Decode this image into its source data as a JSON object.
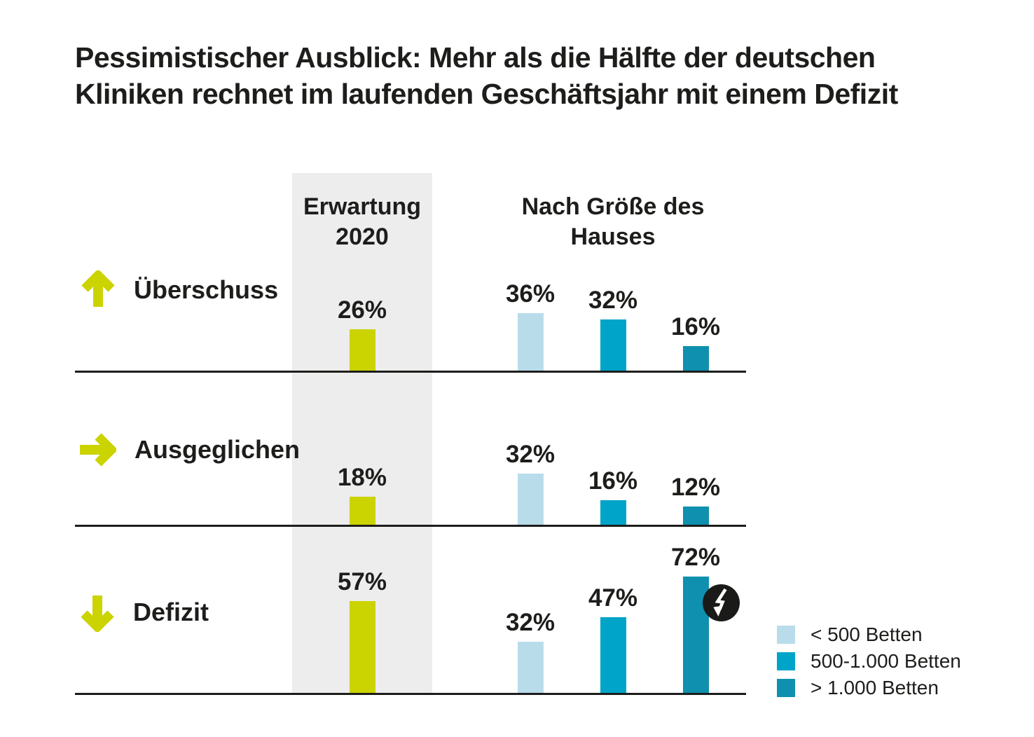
{
  "header": {
    "title_line1": "Pessimistischer Ausblick: Mehr als die Hälfte der deutschen",
    "title_line2": "Kliniken rechnet im laufenden Geschäftsjahr mit einem Defizit"
  },
  "columns": {
    "erwartung": {
      "line1": "Erwartung",
      "line2": "2020"
    },
    "groesse": {
      "line1": "Nach Größe des",
      "line2": "Hauses"
    }
  },
  "legend": {
    "items": [
      {
        "label": "< 500 Betten",
        "color": "#b9dcea"
      },
      {
        "label": "500-1.000 Betten",
        "color": "#00a4c8"
      },
      {
        "label": "> 1.000 Betten",
        "color": "#0e90ae"
      }
    ]
  },
  "colors": {
    "accent_lime": "#cbd300",
    "light_blue": "#b9dcea",
    "cyan": "#00a4c8",
    "teal": "#0e90ae",
    "band_gray": "#ededee",
    "ink": "#1d1d1b",
    "badge_black": "#1a1a18"
  },
  "chart_data": {
    "type": "bar",
    "title": "Pessimistischer Ausblick: Mehr als die Hälfte der deutschen Kliniken rechnet im laufenden Geschäftsjahr mit einem Defizit",
    "unit": "%",
    "ylim": [
      0,
      100
    ],
    "grid": false,
    "legend_position": "bottom-right",
    "column_groups": [
      "Erwartung 2020",
      "Nach Größe des Hauses"
    ],
    "series": [
      "Erwartung 2020",
      "< 500 Betten",
      "500-1.000 Betten",
      "> 1.000 Betten"
    ],
    "series_colors": [
      "#cbd300",
      "#b9dcea",
      "#00a4c8",
      "#0e90ae"
    ],
    "rows": [
      {
        "category": "Überschuss",
        "icon": "arrow-up",
        "bars": [
          {
            "series": "Erwartung 2020",
            "value": 26,
            "label": "26%"
          },
          {
            "series": "< 500 Betten",
            "value": 36,
            "label": "36%"
          },
          {
            "series": "500-1.000 Betten",
            "value": 32,
            "label": "32%"
          },
          {
            "series": "> 1.000 Betten",
            "value": 16,
            "label": "16%"
          }
        ]
      },
      {
        "category": "Ausgeglichen",
        "icon": "arrow-right",
        "bars": [
          {
            "series": "Erwartung 2020",
            "value": 18,
            "label": "18%"
          },
          {
            "series": "< 500 Betten",
            "value": 32,
            "label": "32%"
          },
          {
            "series": "500-1.000 Betten",
            "value": 16,
            "label": "16%"
          },
          {
            "series": "> 1.000 Betten",
            "value": 12,
            "label": "12%"
          }
        ]
      },
      {
        "category": "Defizit",
        "icon": "arrow-down",
        "bars": [
          {
            "series": "Erwartung 2020",
            "value": 57,
            "label": "57%"
          },
          {
            "series": "< 500 Betten",
            "value": 32,
            "label": "32%"
          },
          {
            "series": "500-1.000 Betten",
            "value": 47,
            "label": "47%"
          },
          {
            "series": "> 1.000 Betten",
            "value": 72,
            "label": "72%"
          }
        ]
      }
    ],
    "annotations": [
      {
        "type": "lightning-badge",
        "target_row": "Defizit",
        "target_series": "> 1.000 Betten"
      }
    ]
  }
}
